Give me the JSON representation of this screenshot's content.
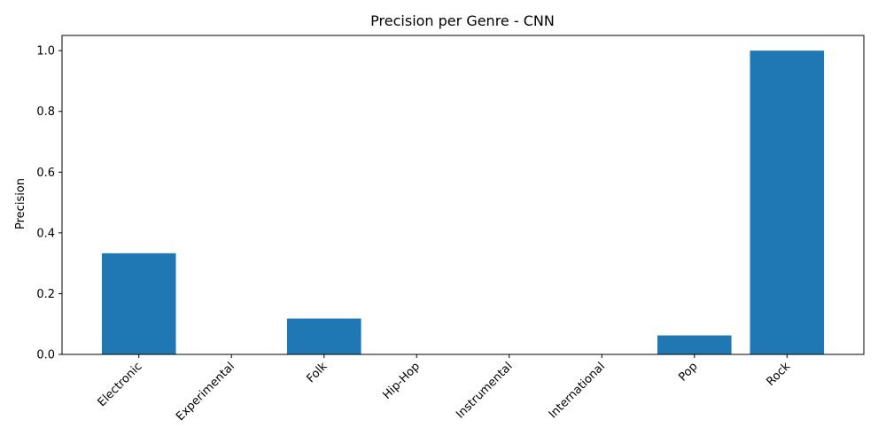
{
  "chart_data": {
    "type": "bar",
    "title": "Precision per Genre - CNN",
    "xlabel": "",
    "ylabel": "Precision",
    "categories": [
      "Electronic",
      "Experimental",
      "Folk",
      "Hip-Hop",
      "Instrumental",
      "International",
      "Pop",
      "Rock"
    ],
    "values": [
      0.333,
      0.0,
      0.118,
      0.0,
      0.0,
      0.0,
      0.0625,
      1.0
    ],
    "ylim": [
      0,
      1.05
    ],
    "yticks": [
      "0.0",
      "0.2",
      "0.4",
      "0.6",
      "0.8",
      "1.0"
    ],
    "grid": false,
    "bar_color": "#1f77b4"
  }
}
